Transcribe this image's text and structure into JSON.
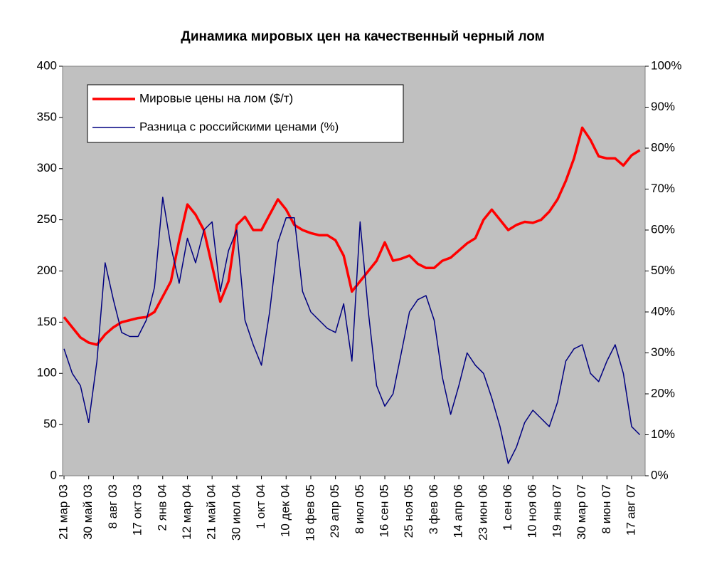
{
  "chart_data": {
    "type": "line",
    "title": "Динамика мировых цен на качественный черный лом",
    "categories": [
      "21 мар 03",
      null,
      null,
      "30 май 03",
      null,
      null,
      "8 авг 03",
      null,
      null,
      "17 окт 03",
      null,
      null,
      "2 янв 04",
      null,
      null,
      "12 мар 04",
      null,
      null,
      "21 май 04",
      null,
      null,
      "30 июл 04",
      null,
      null,
      "1 окт 04",
      null,
      null,
      "10 дек 04",
      null,
      null,
      "18 фев 05",
      null,
      null,
      "29 апр 05",
      null,
      null,
      "8 июл 05",
      null,
      null,
      "16 сен 05",
      null,
      null,
      "25 ноя 05",
      null,
      null,
      "3 фев 06",
      null,
      null,
      "14 апр 06",
      null,
      null,
      "23 июн 06",
      null,
      null,
      "1 сен 06",
      null,
      null,
      "10 ноя 06",
      null,
      null,
      "19 янв 07",
      null,
      null,
      "30 мар 07",
      null,
      null,
      "8 июн 07",
      null,
      null,
      "17 авг 07",
      null
    ],
    "series": [
      {
        "name": "Мировые цены на лом ($/т)",
        "color": "#ff0000",
        "axis": "y",
        "values": [
          155,
          145,
          135,
          130,
          128,
          138,
          145,
          150,
          152,
          154,
          155,
          160,
          175,
          190,
          230,
          265,
          255,
          240,
          205,
          170,
          190,
          245,
          253,
          240,
          240,
          255,
          270,
          260,
          245,
          240,
          237,
          235,
          235,
          230,
          215,
          180,
          190,
          200,
          210,
          228,
          210,
          212,
          215,
          207,
          203,
          203,
          210,
          213,
          220,
          227,
          232,
          250,
          260,
          250,
          240,
          245,
          248,
          247,
          250,
          258,
          270,
          288,
          310,
          340,
          328,
          312,
          310,
          310,
          303,
          313,
          318
        ]
      },
      {
        "name": "Разница с российскими ценами (%)",
        "color": "#000080",
        "axis": "y2",
        "values": [
          31,
          25,
          22,
          13,
          28,
          52,
          43,
          35,
          34,
          34,
          38,
          46,
          68,
          56,
          47,
          58,
          52,
          60,
          62,
          45,
          55,
          60,
          38,
          32,
          27,
          40,
          57,
          63,
          63,
          45,
          40,
          38,
          36,
          35,
          42,
          28,
          62,
          40,
          22,
          17,
          20,
          30,
          40,
          43,
          44,
          38,
          24,
          15,
          22,
          30,
          27,
          25,
          19,
          12,
          3,
          7,
          13,
          16,
          14,
          12,
          18,
          28,
          31,
          32,
          25,
          23,
          28,
          32,
          25,
          12,
          10
        ]
      }
    ],
    "ylim": [
      0,
      400
    ],
    "yticks": [
      0,
      50,
      100,
      150,
      200,
      250,
      300,
      350,
      400
    ],
    "y2lim": [
      0,
      100
    ],
    "y2ticks": [
      {
        "value": 0,
        "label": "0%"
      },
      {
        "value": 10,
        "label": "10%"
      },
      {
        "value": 20,
        "label": "20%"
      },
      {
        "value": 30,
        "label": "30%"
      },
      {
        "value": 40,
        "label": "40%"
      },
      {
        "value": 50,
        "label": "50%"
      },
      {
        "value": 60,
        "label": "60%"
      },
      {
        "value": 70,
        "label": "70%"
      },
      {
        "value": 80,
        "label": "80%"
      },
      {
        "value": 90,
        "label": "90%"
      },
      {
        "value": 100,
        "label": "100%"
      }
    ],
    "legend": "top-left"
  }
}
